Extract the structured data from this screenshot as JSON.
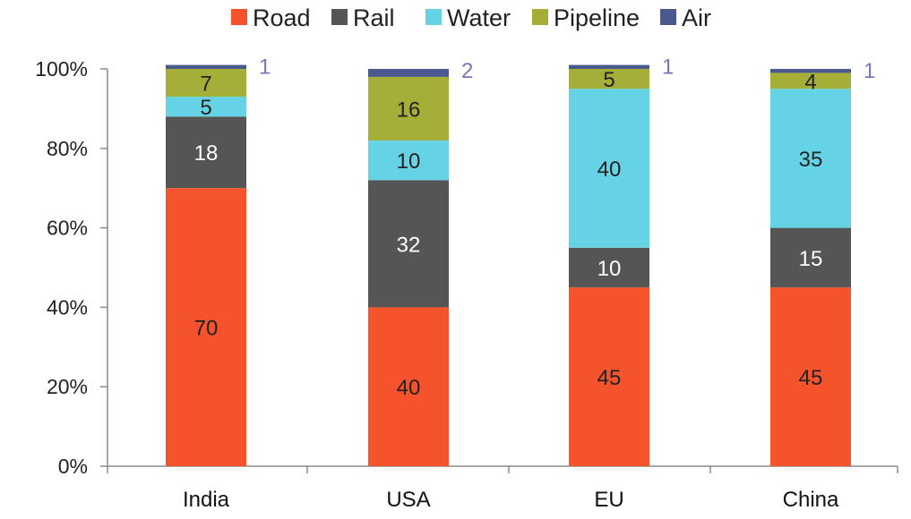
{
  "chart_data": {
    "type": "bar",
    "stacked": true,
    "categories": [
      "India",
      "USA",
      "EU",
      "China"
    ],
    "series": [
      {
        "name": "Road",
        "color": "#f4532b",
        "label_color": "#222222",
        "values": [
          70,
          40,
          45,
          45
        ]
      },
      {
        "name": "Rail",
        "color": "#555555",
        "label_color": "#ffffff",
        "values": [
          18,
          32,
          10,
          15
        ]
      },
      {
        "name": "Water",
        "color": "#66d3e4",
        "label_color": "#222222",
        "values": [
          5,
          10,
          40,
          35
        ]
      },
      {
        "name": "Pipeline",
        "color": "#a5ae37",
        "label_color": "#222222",
        "values": [
          7,
          16,
          5,
          4
        ]
      },
      {
        "name": "Air",
        "color": "#4a5a8e",
        "label_color": "#7777bb",
        "values": [
          1,
          2,
          1,
          1
        ]
      }
    ],
    "ylim": [
      0,
      100
    ],
    "yticks": [
      "0%",
      "20%",
      "40%",
      "60%",
      "80%",
      "100%"
    ],
    "legend_position": "top",
    "grid": false
  }
}
